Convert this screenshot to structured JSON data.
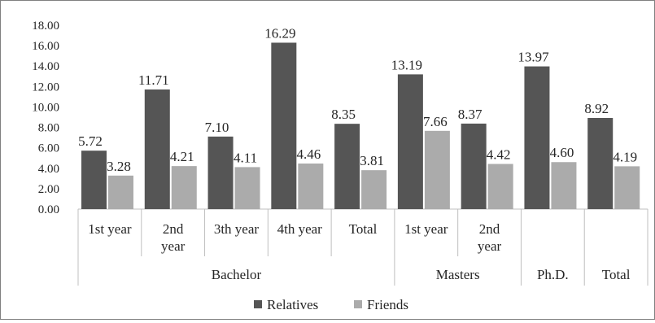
{
  "chart_data": {
    "type": "bar",
    "title": "",
    "xlabel": "",
    "ylabel": "",
    "ylim": [
      0,
      18
    ],
    "yticks": [
      "0.00",
      "2.00",
      "4.00",
      "6.00",
      "8.00",
      "10.00",
      "12.00",
      "14.00",
      "16.00",
      "18.00"
    ],
    "grid": false,
    "legend_position": "bottom",
    "categories": [
      {
        "label_lines": [
          "1st year"
        ],
        "group": "Bachelor"
      },
      {
        "label_lines": [
          "2nd",
          "year"
        ],
        "group": "Bachelor"
      },
      {
        "label_lines": [
          "3th year"
        ],
        "group": "Bachelor"
      },
      {
        "label_lines": [
          "4th year"
        ],
        "group": "Bachelor"
      },
      {
        "label_lines": [
          "Total"
        ],
        "group": "Bachelor"
      },
      {
        "label_lines": [
          "1st year"
        ],
        "group": "Masters"
      },
      {
        "label_lines": [
          "2nd",
          "year"
        ],
        "group": "Masters"
      },
      {
        "label_lines": [
          ""
        ],
        "group": "Ph.D."
      },
      {
        "label_lines": [
          ""
        ],
        "group": "Total"
      }
    ],
    "groups": [
      {
        "label": "Bachelor",
        "count": 5
      },
      {
        "label": "Masters",
        "count": 2
      },
      {
        "label": "Ph.D.",
        "count": 1
      },
      {
        "label": "Total",
        "count": 1
      }
    ],
    "series": [
      {
        "name": "Relatives",
        "color": "#555555",
        "values": [
          5.72,
          11.71,
          7.1,
          16.29,
          8.35,
          13.19,
          8.37,
          13.97,
          8.92
        ],
        "labels": [
          "5.72",
          "11.71",
          "7.10",
          "16.29",
          "8.35",
          "13.19",
          "8.37",
          "13.97",
          "8.92"
        ]
      },
      {
        "name": "Friends",
        "color": "#ababab",
        "values": [
          3.28,
          4.21,
          4.11,
          4.46,
          3.81,
          7.66,
          4.42,
          4.6,
          4.19
        ],
        "labels": [
          "3.28",
          "4.21",
          "4.11",
          "4.46",
          "3.81",
          "7.66",
          "4.42",
          "4.60",
          "4.19"
        ]
      }
    ]
  }
}
